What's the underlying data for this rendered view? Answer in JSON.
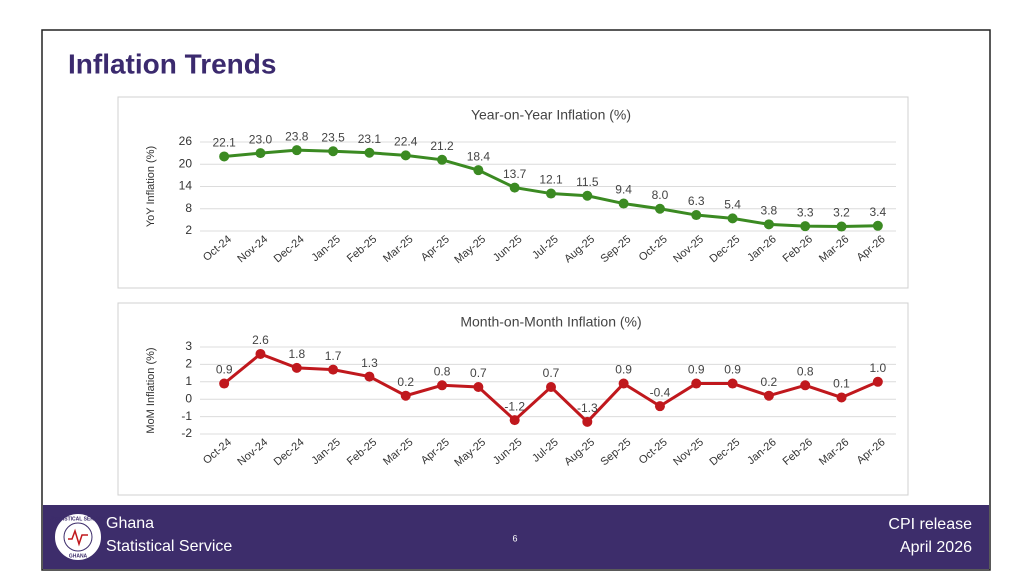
{
  "title": "Inflation Trends",
  "chart_data": [
    {
      "type": "line",
      "title": "Year-on-Year Inflation (%)",
      "y_label": "YoY Inflation (%)",
      "categories": [
        "Oct-24",
        "Nov-24",
        "Dec-24",
        "Jan-25",
        "Feb-25",
        "Mar-25",
        "Apr-25",
        "May-25",
        "Jun-25",
        "Jul-25",
        "Aug-25",
        "Sep-25",
        "Oct-25",
        "Nov-25",
        "Dec-25",
        "Jan-26",
        "Feb-26",
        "Mar-26",
        "Apr-26"
      ],
      "values": [
        22.1,
        23.0,
        23.8,
        23.5,
        23.1,
        22.4,
        21.2,
        18.4,
        13.7,
        12.1,
        11.5,
        9.4,
        8.0,
        6.3,
        5.4,
        3.8,
        3.3,
        3.2,
        3.4
      ],
      "value_labels": [
        "22.1",
        "23.0",
        "23.8",
        "23.5",
        "23.1",
        "22.4",
        "21.2",
        "18.4",
        "13.7",
        "12.1",
        "11.5",
        "9.4",
        "8.0",
        "6.3",
        "5.4",
        "3.8",
        "3.3",
        "3.2",
        "3.4"
      ],
      "color": "#3b8a22",
      "ylim": [
        2,
        26
      ],
      "yticks": [
        2,
        8,
        14,
        20,
        26
      ],
      "grid": true
    },
    {
      "type": "line",
      "title": "Month-on-Month Inflation (%)",
      "y_label": "MoM Inflation (%)",
      "categories": [
        "Oct-24",
        "Nov-24",
        "Dec-24",
        "Jan-25",
        "Feb-25",
        "Mar-25",
        "Apr-25",
        "May-25",
        "Jun-25",
        "Jul-25",
        "Aug-25",
        "Sep-25",
        "Oct-25",
        "Nov-25",
        "Dec-25",
        "Jan-26",
        "Feb-26",
        "Mar-26",
        "Apr-26"
      ],
      "values": [
        0.9,
        2.6,
        1.8,
        1.7,
        1.3,
        0.2,
        0.8,
        0.7,
        -1.2,
        0.7,
        -1.3,
        0.9,
        -0.4,
        0.9,
        0.9,
        0.2,
        0.8,
        0.1,
        1.0
      ],
      "value_labels": [
        "0.9",
        "2.6",
        "1.8",
        "1.7",
        "1.3",
        "0.2",
        "0.8",
        "0.7",
        "-1.2",
        "0.7",
        "-1.3",
        "0.9",
        "-0.4",
        "0.9",
        "0.9",
        "0.2",
        "0.8",
        "0.1",
        "1.0"
      ],
      "color": "#c0181d",
      "ylim": [
        -2,
        3
      ],
      "yticks": [
        -2,
        -1,
        0,
        1,
        2,
        3
      ],
      "grid": true
    }
  ],
  "footer": {
    "org_line1": "Ghana",
    "org_line2": "Statistical Service",
    "page": "6",
    "release": "CPI release",
    "date": "April  2026",
    "logo_ring": "STATISTICAL SERVICE",
    "logo_bottom": "GHANA"
  }
}
